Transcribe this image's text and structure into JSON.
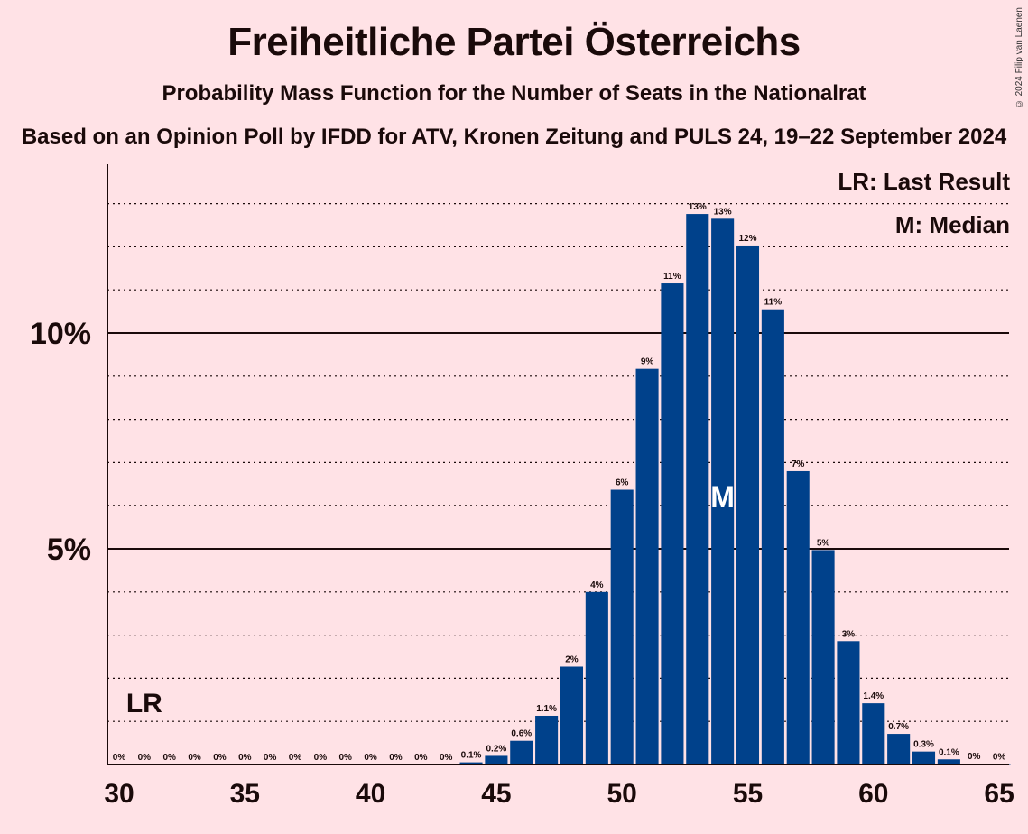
{
  "title": "Freiheitliche Partei Österreichs",
  "subtitle": "Probability Mass Function for the Number of Seats in the Nationalrat",
  "source": "Based on an Opinion Poll by IFDD for ATV, Kronen Zeitung and PULS 24, 19–22 September 2024",
  "copyright": "© 2024 Filip van Laenen",
  "legend": {
    "last_result": "LR: Last Result",
    "median": "M: Median"
  },
  "markers": {
    "last_result_label": "LR",
    "last_result_seat": 31,
    "median_label": "M",
    "median_seat": 54
  },
  "colors": {
    "bar": "#00418b",
    "background": "#ffe2e6",
    "text": "#1a0a0a"
  },
  "chart_data": {
    "type": "bar",
    "xlim": [
      30,
      65
    ],
    "ylim": [
      0,
      14
    ],
    "x_ticks": [
      30,
      35,
      40,
      45,
      50,
      55,
      60,
      65
    ],
    "y_ticks": [
      {
        "value": 5,
        "label": "5%"
      },
      {
        "value": 10,
        "label": "10%"
      }
    ],
    "grid_dotted_every": 1,
    "seats": [
      30,
      31,
      32,
      33,
      34,
      35,
      36,
      37,
      38,
      39,
      40,
      41,
      42,
      43,
      44,
      45,
      46,
      47,
      48,
      49,
      50,
      51,
      52,
      53,
      54,
      55,
      56,
      57,
      58,
      59,
      60,
      61,
      62,
      63,
      64,
      65
    ],
    "values": [
      0,
      0,
      0,
      0,
      0,
      0,
      0,
      0,
      0,
      0,
      0,
      0,
      0,
      0,
      0.05,
      0.2,
      0.55,
      1.13,
      2.27,
      4.0,
      6.37,
      9.17,
      11.15,
      12.76,
      12.65,
      12.03,
      10.55,
      6.8,
      4.97,
      2.86,
      1.42,
      0.71,
      0.3,
      0.12,
      0.02,
      0.01
    ],
    "labels": [
      "0%",
      "0%",
      "0%",
      "0%",
      "0%",
      "0%",
      "0%",
      "0%",
      "0%",
      "0%",
      "0%",
      "0%",
      "0%",
      "0%",
      "0.1%",
      "0.2%",
      "0.6%",
      "1.1%",
      "2%",
      "4%",
      "6%",
      "9%",
      "11%",
      "13%",
      "13%",
      "12%",
      "11%",
      "7%",
      "5%",
      "3%",
      "1.4%",
      "0.7%",
      "0.3%",
      "0.1%",
      "0%",
      "0%"
    ]
  }
}
